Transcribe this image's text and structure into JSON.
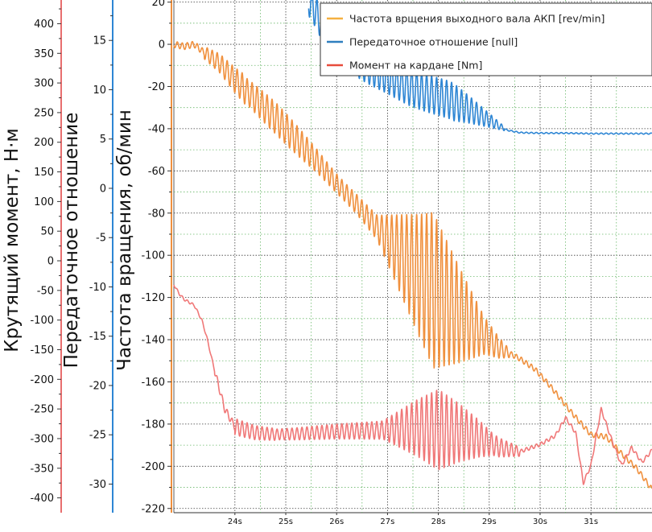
{
  "chart_data": {
    "type": "line",
    "xlabel": "",
    "x_ticks": [
      "24s",
      "25s",
      "26s",
      "27s",
      "28s",
      "29s",
      "30s",
      "31s"
    ],
    "xlim": [
      22.8,
      32.2
    ],
    "axes": [
      {
        "id": "torque",
        "label": "Крутящий момент, Н·м",
        "color": "#e86f6f",
        "ylim": [
          -425,
          440
        ],
        "ticks": [
          "400",
          "350",
          "300",
          "250",
          "200",
          "150",
          "100",
          "50",
          "0",
          "-50",
          "-100",
          "-150",
          "-200",
          "-250",
          "-300",
          "-350",
          "-400"
        ]
      },
      {
        "id": "ratio",
        "label": "Передаточное отношение",
        "color": "#2e86d4",
        "ylim": [
          -32.9,
          19.1
        ],
        "ticks": [
          "15",
          "10",
          "5",
          "0",
          "-5",
          "-10",
          "-15",
          "-20",
          "-25",
          "-30"
        ]
      },
      {
        "id": "speed",
        "label": "Частота вращения, об/мин",
        "color": "#f0913f",
        "ylim": [
          -222,
          21
        ],
        "ticks": [
          "20",
          "0",
          "-20",
          "-40",
          "-60",
          "-80",
          "-100",
          "-120",
          "-140",
          "-160",
          "-180",
          "-200",
          "-220"
        ]
      }
    ],
    "legend_position": "top-right",
    "grid": true,
    "series": [
      {
        "name": "Частота врщения выходного вала АКП [rev/min]",
        "axis": "speed",
        "color": "#f0913f",
        "legend_color": "#f5b041",
        "x": [
          22.8,
          23.0,
          23.2,
          23.4,
          23.7,
          24.0,
          24.4,
          24.8,
          25.2,
          25.6,
          26.0,
          26.4,
          26.8,
          27.2,
          27.6,
          28.0,
          28.4,
          28.8,
          29.2,
          29.6,
          29.9,
          30.2,
          30.6,
          31.0,
          31.3,
          31.6,
          31.9,
          32.2
        ],
        "y": [
          0,
          -1,
          0,
          -4,
          -9,
          -17,
          -26,
          -35,
          -45,
          -55,
          -66,
          -76,
          -87,
          -98,
          -109,
          -119,
          -128,
          -136,
          -144,
          -149,
          -154,
          -162,
          -174,
          -185,
          -186,
          -194,
          -201,
          -211
        ]
      },
      {
        "name": "Передаточное отношение [null]",
        "axis": "ratio",
        "color": "#2e86d4",
        "legend_color": "#2e7fbf",
        "x": [
          25.45,
          25.6,
          25.8,
          26.0,
          26.3,
          26.6,
          27.0,
          27.4,
          27.8,
          28.2,
          28.6,
          29.0,
          29.35,
          29.6,
          30.0,
          30.5,
          31.0,
          31.5,
          32.2
        ],
        "y": [
          19.1,
          17.8,
          15.6,
          14.0,
          12.8,
          12.0,
          11.2,
          10.3,
          9.6,
          9.0,
          8.0,
          6.9,
          5.9,
          5.65,
          5.6,
          5.6,
          5.55,
          5.55,
          5.55
        ]
      },
      {
        "name": "Момент на кардане [Nm]",
        "axis": "torque",
        "color": "#f07878",
        "legend_color": "#e74c3c",
        "x": [
          22.8,
          22.9,
          23.0,
          23.2,
          23.35,
          23.45,
          23.6,
          23.8,
          24.0,
          24.4,
          24.8,
          25.2,
          25.6,
          26.0,
          26.4,
          26.8,
          27.2,
          27.6,
          28.0,
          28.4,
          28.8,
          29.2,
          29.6,
          30.0,
          30.3,
          30.5,
          30.7,
          30.85,
          31.0,
          31.2,
          31.4,
          31.6,
          31.8,
          32.0,
          32.2
        ],
        "y": [
          -40,
          -55,
          -65,
          -75,
          -100,
          -130,
          -185,
          -250,
          -280,
          -290,
          -293,
          -292,
          -290,
          -288,
          -287,
          -286,
          -284,
          -282,
          -285,
          -290,
          -300,
          -315,
          -322,
          -310,
          -295,
          -265,
          -290,
          -375,
          -345,
          -250,
          -300,
          -345,
          -315,
          -340,
          -320
        ]
      }
    ]
  }
}
